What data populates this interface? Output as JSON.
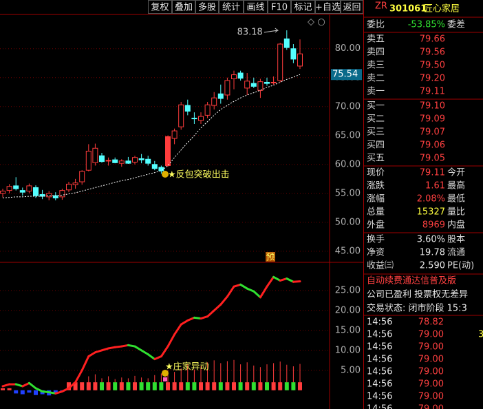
{
  "toolbar": {
    "buttons": [
      "复权",
      "叠加",
      "多股",
      "统计",
      "画线",
      "F10",
      "标记",
      "+自选",
      "返回"
    ]
  },
  "quote": {
    "header": {
      "tag": "ZR",
      "code": "301061",
      "name": "匠心家居"
    },
    "weibi": {
      "label": "委比",
      "value": "-53.85%",
      "label2": "委差",
      "color": "#30e030"
    },
    "sells": [
      {
        "label": "卖五",
        "price": "79.66"
      },
      {
        "label": "卖四",
        "price": "79.56"
      },
      {
        "label": "卖三",
        "price": "79.50"
      },
      {
        "label": "卖二",
        "price": "79.20"
      },
      {
        "label": "卖一",
        "price": "79.11"
      }
    ],
    "buys": [
      {
        "label": "买一",
        "price": "79.10"
      },
      {
        "label": "买二",
        "price": "79.09"
      },
      {
        "label": "买三",
        "price": "79.07"
      },
      {
        "label": "买四",
        "price": "79.06"
      },
      {
        "label": "买五",
        "price": "79.05"
      }
    ],
    "stats": [
      {
        "label": "现价",
        "value": "79.11",
        "label2": "今开",
        "color": "#ff4040"
      },
      {
        "label": "涨跌",
        "value": "1.61",
        "label2": "最高",
        "color": "#ff4040"
      },
      {
        "label": "涨幅",
        "value": "2.08%",
        "label2": "最低",
        "color": "#ff4040"
      },
      {
        "label": "总量",
        "value": "15327",
        "label2": "量比",
        "color": "#ffff40"
      },
      {
        "label": "外盘",
        "value": "8969",
        "label2": "内盘",
        "color": "#ff4040"
      }
    ],
    "stats2": [
      {
        "label": "换手",
        "value": "3.60%",
        "label2": "股本",
        "color": "#e8e8e8"
      },
      {
        "label": "净资",
        "value": "19.78",
        "label2": "流通",
        "color": "#e8e8e8"
      },
      {
        "label": "收益㈢",
        "value": "2.590",
        "label2": "PE(动)",
        "color": "#e8e8e8"
      }
    ],
    "notices": [
      {
        "text": "自动续费通达信普及版",
        "color": "#ff4040"
      },
      {
        "text": "公司已盈利 投票权无差异",
        "color": "#e8e8e8"
      },
      {
        "text": "交易状态: 闭市阶段 15:3",
        "color": "#e8e8e8"
      }
    ],
    "ticks": [
      {
        "time": "14:56",
        "price": "78.82",
        "vol": ""
      },
      {
        "time": "14:56",
        "price": "79.00",
        "vol": "3"
      },
      {
        "time": "14:56",
        "price": "79.00",
        "vol": ""
      },
      {
        "time": "14:56",
        "price": "79.00",
        "vol": ""
      },
      {
        "time": "14:56",
        "price": "79.00",
        "vol": ""
      },
      {
        "time": "14:56",
        "price": "79.00",
        "vol": ""
      },
      {
        "time": "14:56",
        "price": "79.00",
        "vol": ""
      },
      {
        "time": "14:56",
        "price": "79.00",
        "vol": ""
      }
    ]
  },
  "chart": {
    "ylim": [
      43.2,
      85.8
    ],
    "yticks": [
      {
        "value": 80,
        "label": "80.00"
      },
      {
        "value": 75,
        "label": "75.00"
      },
      {
        "value": 70,
        "label": "70.00"
      },
      {
        "value": 65,
        "label": "65.00"
      },
      {
        "value": 60,
        "label": "60.00"
      },
      {
        "value": 55,
        "label": "55.00"
      },
      {
        "value": 50,
        "label": "50.00"
      },
      {
        "value": 45,
        "label": "45.00"
      }
    ],
    "candles": [
      {
        "o": 55.0,
        "h": 55.8,
        "l": 54.3,
        "c": 55.4
      },
      {
        "o": 55.5,
        "h": 56.6,
        "l": 55.0,
        "c": 56.2
      },
      {
        "o": 56.3,
        "h": 57.8,
        "l": 55.5,
        "c": 55.8
      },
      {
        "o": 55.5,
        "h": 56.0,
        "l": 54.6,
        "c": 55.2
      },
      {
        "o": 55.4,
        "h": 56.7,
        "l": 55.0,
        "c": 56.3
      },
      {
        "o": 56.0,
        "h": 56.4,
        "l": 54.2,
        "c": 54.6
      },
      {
        "o": 54.8,
        "h": 55.6,
        "l": 54.0,
        "c": 54.5
      },
      {
        "o": 54.4,
        "h": 55.4,
        "l": 53.8,
        "c": 55.0
      },
      {
        "o": 54.6,
        "h": 55.2,
        "l": 53.8,
        "c": 54.2
      },
      {
        "o": 54.4,
        "h": 55.8,
        "l": 53.9,
        "c": 55.5
      },
      {
        "o": 55.6,
        "h": 57.0,
        "l": 55.2,
        "c": 56.6
      },
      {
        "o": 56.5,
        "h": 57.5,
        "l": 55.8,
        "c": 56.8
      },
      {
        "o": 57.0,
        "h": 59.0,
        "l": 56.5,
        "c": 58.8
      },
      {
        "o": 59.0,
        "h": 63.5,
        "l": 58.8,
        "c": 62.3
      },
      {
        "o": 60.3,
        "h": 63.6,
        "l": 59.8,
        "c": 62.8
      },
      {
        "o": 61.5,
        "h": 62.0,
        "l": 60.3,
        "c": 60.5
      },
      {
        "o": 60.6,
        "h": 61.2,
        "l": 59.8,
        "c": 60.7
      },
      {
        "o": 60.8,
        "h": 61.2,
        "l": 60.2,
        "c": 60.3
      },
      {
        "o": 60.2,
        "h": 60.9,
        "l": 59.6,
        "c": 60.6
      },
      {
        "o": 60.6,
        "h": 61.3,
        "l": 60.1,
        "c": 60.2
      },
      {
        "o": 60.4,
        "h": 61.5,
        "l": 60.0,
        "c": 61.2
      },
      {
        "o": 61.0,
        "h": 61.8,
        "l": 60.2,
        "c": 60.8
      },
      {
        "o": 60.9,
        "h": 61.5,
        "l": 59.8,
        "c": 60.2
      },
      {
        "o": 60.0,
        "h": 60.6,
        "l": 59.0,
        "c": 59.3
      },
      {
        "o": 59.5,
        "h": 59.8,
        "l": 58.4,
        "c": 58.9
      },
      {
        "o": 59.8,
        "h": 65.0,
        "l": 59.6,
        "c": 64.8,
        "solid": true
      },
      {
        "o": 64.5,
        "h": 66.2,
        "l": 63.5,
        "c": 65.8
      },
      {
        "o": 66.5,
        "h": 70.8,
        "l": 66.0,
        "c": 70.3
      },
      {
        "o": 70.2,
        "h": 71.2,
        "l": 68.5,
        "c": 69.2
      },
      {
        "o": 68.0,
        "h": 69.0,
        "l": 67.0,
        "c": 67.9
      },
      {
        "o": 67.6,
        "h": 69.0,
        "l": 67.0,
        "c": 68.3
      },
      {
        "o": 68.5,
        "h": 70.8,
        "l": 68.0,
        "c": 70.3
      },
      {
        "o": 70.2,
        "h": 72.5,
        "l": 69.5,
        "c": 71.5
      },
      {
        "o": 72.2,
        "h": 73.8,
        "l": 70.5,
        "c": 71.4
      },
      {
        "o": 72.0,
        "h": 75.0,
        "l": 71.2,
        "c": 74.5
      },
      {
        "o": 74.8,
        "h": 76.2,
        "l": 73.0,
        "c": 75.5
      },
      {
        "o": 75.8,
        "h": 76.2,
        "l": 74.5,
        "c": 74.9
      },
      {
        "o": 73.2,
        "h": 75.8,
        "l": 72.0,
        "c": 74.4
      },
      {
        "o": 74.0,
        "h": 75.0,
        "l": 73.2,
        "c": 73.5
      },
      {
        "o": 72.8,
        "h": 74.8,
        "l": 71.5,
        "c": 74.3
      },
      {
        "o": 74.2,
        "h": 75.0,
        "l": 73.6,
        "c": 74.0
      },
      {
        "o": 74.2,
        "h": 75.2,
        "l": 73.8,
        "c": 74.2
      },
      {
        "o": 74.5,
        "h": 81.0,
        "l": 74.2,
        "c": 80.8
      },
      {
        "o": 81.7,
        "h": 83.18,
        "l": 79.8,
        "c": 80.2
      },
      {
        "o": 80.0,
        "h": 80.8,
        "l": 77.5,
        "c": 78.2
      },
      {
        "o": 77.0,
        "h": 81.6,
        "l": 76.5,
        "c": 79.11
      }
    ],
    "ma": [
      54.2,
      54.3,
      54.4,
      54.4,
      54.5,
      54.5,
      54.5,
      54.6,
      54.6,
      54.7,
      54.9,
      55.1,
      55.4,
      55.7,
      56.0,
      56.3,
      56.6,
      56.9,
      57.2,
      57.4,
      57.7,
      58.0,
      58.3,
      58.6,
      58.9,
      59.8,
      61.2,
      62.5,
      63.8,
      65.0,
      66.3,
      67.4,
      68.5,
      69.5,
      70.2,
      70.9,
      71.5,
      72.0,
      72.4,
      72.8,
      73.3,
      73.7,
      74.2,
      74.7,
      75.1,
      75.54
    ],
    "signal": "★反包突破出击",
    "badge": "预"
  },
  "indicator": {
    "ylim": [
      -4.7,
      31.9
    ],
    "yticks": [
      {
        "value": 25,
        "label": "25.00"
      },
      {
        "value": 20,
        "label": "20.00"
      },
      {
        "value": 15,
        "label": "15.00"
      },
      {
        "value": 10,
        "label": "10.00"
      },
      {
        "value": 5,
        "label": "5.00"
      }
    ],
    "line": [
      1.0,
      1.5,
      1.5,
      1.0,
      1.8,
      0.5,
      -0.3,
      -0.5,
      -0.8,
      -0.3,
      0.5,
      2.0,
      5.0,
      8.5,
      9.5,
      10.0,
      10.5,
      10.8,
      11.0,
      11.3,
      11.0,
      10.0,
      9.0,
      7.8,
      8.5,
      11.0,
      14.0,
      16.5,
      17.5,
      18.2,
      18.0,
      18.5,
      20.0,
      21.5,
      23.5,
      26.0,
      26.5,
      25.5,
      24.8,
      23.3,
      26.0,
      28.4,
      27.5,
      28.0,
      27.2,
      27.3
    ],
    "bars": [
      0.5,
      0.5,
      -0.8,
      -1.0,
      -0.6,
      -1.2,
      -1.0,
      -1.3,
      -0.7,
      -0.4,
      2.0,
      2.0,
      2.0,
      2.0,
      2.0,
      2.0,
      2.0,
      2.0,
      2.0,
      2.0,
      2.0,
      2.0,
      2.0,
      2.0,
      2.0,
      2.0,
      2.0,
      2.0,
      2.0,
      2.0,
      2.0,
      2.0,
      2.0,
      2.0,
      2.0,
      2.0,
      2.0,
      2.0,
      2.0,
      2.0,
      2.0,
      2.0,
      2.0,
      2.0,
      2.0,
      2.0
    ],
    "spikes": [
      null,
      null,
      null,
      null,
      null,
      null,
      null,
      null,
      null,
      null,
      null,
      null,
      null,
      3.5,
      4.0,
      3.0,
      3.5,
      2.8,
      3.2,
      3.0,
      3.6,
      3.2,
      3.0,
      3.8,
      4.2,
      5.0,
      4.6,
      5.5,
      6.5,
      5.2,
      6.0,
      7.0,
      7.5,
      6.8,
      7.3,
      7.6,
      6.5,
      7.0,
      6.2,
      5.8,
      6.5,
      6.8,
      7.2,
      6.4,
      6.0,
      6.6
    ],
    "signal": "★庄家异动"
  }
}
